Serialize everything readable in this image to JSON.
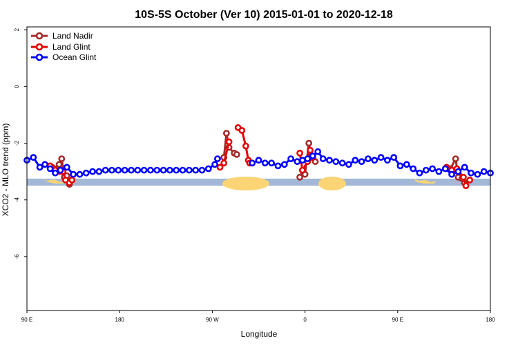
{
  "chart_data": {
    "type": "line",
    "title": "10S-5S October (Ver 10)   2015-01-01 to 2020-12-18",
    "xlabel": "Longitude",
    "ylabel": "XCO2 - MLO trend (ppm)",
    "xlim": [
      90,
      450
    ],
    "ylim": [
      -7.9,
      2.1
    ],
    "x_ticks": [
      {
        "value": 90,
        "label": "90 E"
      },
      {
        "value": 162,
        "label": "180"
      },
      {
        "value": 234,
        "label": "90 W"
      },
      {
        "value": 306,
        "label": "0"
      },
      {
        "value": 378,
        "label": "90 E"
      },
      {
        "value": 450,
        "label": "180"
      }
    ],
    "y_ticks": [
      {
        "value": 2,
        "label": "2"
      },
      {
        "value": 0,
        "label": "0"
      },
      {
        "value": -2,
        "label": "-2"
      },
      {
        "value": -4,
        "label": "-4"
      },
      {
        "value": -6,
        "label": "-6"
      }
    ],
    "grid": false,
    "legend": "top-left",
    "land_band": {
      "y_from": -3.25,
      "y_to": -3.5,
      "ocean_color": "#a3b8d6",
      "land_color": "#fbd575"
    },
    "series": [
      {
        "name": "Land Nadir",
        "color": "#a52a2a",
        "segments": [
          [
            [
              109.5,
              -2.85
            ],
            [
              111.5,
              -2.9
            ],
            [
              115,
              -2.75
            ],
            [
              117,
              -2.55
            ],
            [
              119,
              -3.2
            ],
            [
              121,
              -3.15
            ],
            [
              123,
              -3.45
            ]
          ],
          [
            [
              243,
              -2.5
            ],
            [
              245,
              -1.65
            ],
            [
              247,
              -2.15
            ],
            [
              251,
              -2.35
            ],
            [
              253,
              -2.4
            ]
          ],
          [
            [
              302,
              -3.2
            ],
            [
              304,
              -2.95
            ],
            [
              306,
              -3.1
            ],
            [
              309,
              -2.0
            ],
            [
              311,
              -2.5
            ],
            [
              314,
              -2.65
            ]
          ],
          [
            [
              419,
              -2.9
            ],
            [
              423,
              -2.55
            ],
            [
              425,
              -3.2
            ],
            [
              428,
              -3.25
            ],
            [
              430,
              -3.4
            ]
          ]
        ]
      },
      {
        "name": "Land Glint",
        "color": "#e60000",
        "segments": [
          [
            [
              108,
              -2.8
            ],
            [
              110,
              -2.9
            ],
            [
              112,
              -2.95
            ],
            [
              115,
              -3.0
            ],
            [
              118,
              -3.0
            ],
            [
              120,
              -3.3
            ],
            [
              123,
              -3.4
            ],
            [
              125,
              -3.3
            ]
          ],
          [
            [
              240,
              -2.85
            ],
            [
              243,
              -2.7
            ],
            [
              247,
              -1.95
            ]
          ],
          [
            [
              254,
              -1.45
            ],
            [
              257,
              -1.55
            ],
            [
              260,
              -2.1
            ],
            [
              262,
              -2.6
            ],
            [
              263,
              -2.7
            ]
          ],
          [
            [
              302,
              -2.35
            ],
            [
              304,
              -2.95
            ],
            [
              308,
              -2.65
            ],
            [
              310,
              -2.25
            ],
            [
              312,
              -2.5
            ]
          ],
          [
            [
              416,
              -2.85
            ],
            [
              420,
              -2.95
            ],
            [
              424,
              -2.9
            ],
            [
              429,
              -3.2
            ],
            [
              431,
              -3.5
            ],
            [
              434,
              -3.3
            ]
          ]
        ]
      },
      {
        "name": "Ocean Glint",
        "color": "#0000ff",
        "segments": [
          [
            [
              90,
              -2.6
            ],
            [
              95,
              -2.5
            ],
            [
              100,
              -2.85
            ],
            [
              104,
              -2.75
            ],
            [
              108,
              -2.9
            ],
            [
              112,
              -3.05
            ],
            [
              116,
              -2.95
            ],
            [
              121,
              -2.85
            ],
            [
              126,
              -3.1
            ],
            [
              131,
              -3.1
            ],
            [
              136,
              -3.05
            ],
            [
              141,
              -3.0
            ],
            [
              146,
              -3.0
            ],
            [
              151,
              -2.95
            ],
            [
              156,
              -2.95
            ],
            [
              161,
              -2.95
            ],
            [
              166,
              -2.95
            ],
            [
              171,
              -2.95
            ],
            [
              176,
              -2.95
            ],
            [
              181,
              -2.95
            ],
            [
              186,
              -2.95
            ],
            [
              191,
              -2.95
            ],
            [
              196,
              -2.95
            ],
            [
              201,
              -2.95
            ],
            [
              206,
              -2.95
            ],
            [
              211,
              -2.95
            ],
            [
              216,
              -2.95
            ],
            [
              221,
              -2.95
            ],
            [
              226,
              -2.95
            ],
            [
              231,
              -2.9
            ],
            [
              236,
              -2.75
            ],
            [
              238,
              -2.55
            ]
          ],
          [
            [
              265,
              -2.7
            ],
            [
              270,
              -2.6
            ],
            [
              275,
              -2.7
            ],
            [
              280,
              -2.7
            ],
            [
              285,
              -2.8
            ],
            [
              290,
              -2.75
            ],
            [
              295,
              -2.55
            ],
            [
              300,
              -2.65
            ],
            [
              304,
              -2.6
            ],
            [
              308,
              -2.55
            ],
            [
              312,
              -2.45
            ],
            [
              316,
              -2.3
            ],
            [
              320,
              -2.55
            ],
            [
              325,
              -2.6
            ],
            [
              330,
              -2.65
            ],
            [
              335,
              -2.7
            ],
            [
              340,
              -2.75
            ],
            [
              345,
              -2.6
            ],
            [
              350,
              -2.65
            ],
            [
              355,
              -2.55
            ],
            [
              360,
              -2.6
            ],
            [
              365,
              -2.5
            ],
            [
              370,
              -2.6
            ],
            [
              375,
              -2.5
            ],
            [
              380,
              -2.8
            ],
            [
              385,
              -2.75
            ],
            [
              390,
              -2.9
            ],
            [
              395,
              -3.05
            ],
            [
              400,
              -2.95
            ],
            [
              405,
              -2.9
            ],
            [
              410,
              -3.0
            ],
            [
              415,
              -2.9
            ],
            [
              420,
              -3.1
            ],
            [
              425,
              -3.0
            ],
            [
              430,
              -2.85
            ],
            [
              435,
              -3.05
            ],
            [
              440,
              -3.1
            ],
            [
              445,
              -3.0
            ],
            [
              450,
              -3.05
            ]
          ]
        ]
      }
    ]
  }
}
